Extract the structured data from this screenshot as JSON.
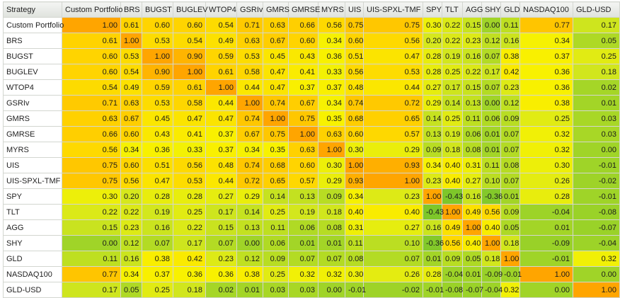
{
  "chart_data": {
    "type": "heatmap",
    "title": "",
    "corner_label": "Strategy",
    "columns": [
      "Custom Portfolio",
      "BRS",
      "BUGST",
      "BUGLEV",
      "WTOP4",
      "GSRIv",
      "GMRS",
      "GMRSE",
      "MYRS",
      "UIS",
      "UIS-SPXL-TMF",
      "SPY",
      "TLT",
      "AGG",
      "SHY",
      "GLD",
      "NASDAQ100",
      "GLD-USD"
    ],
    "rows": [
      "Custom Portfolio",
      "BRS",
      "BUGST",
      "BUGLEV",
      "WTOP4",
      "GSRIv",
      "GMRS",
      "GMRSE",
      "MYRS",
      "UIS",
      "UIS-SPXL-TMF",
      "SPY",
      "TLT",
      "AGG",
      "SHY",
      "GLD",
      "NASDAQ100",
      "GLD-USD"
    ],
    "values": [
      [
        "1.00",
        "0.61",
        "0.60",
        "0.60",
        "0.54",
        "0.71",
        "0.63",
        "0.66",
        "0.56",
        "0.75",
        "0.75",
        "0.30",
        "0.22",
        "0.15",
        "0.00",
        "0.11",
        "0.77",
        "0.17"
      ],
      [
        "0.61",
        "1.00",
        "0.53",
        "0.54",
        "0.49",
        "0.63",
        "0.67",
        "0.60",
        "0.34",
        "0.60",
        "0.56",
        "0.20",
        "0.22",
        "0.23",
        "0.12",
        "0.16",
        "0.34",
        "0.05"
      ],
      [
        "0.60",
        "0.53",
        "1.00",
        "0.90",
        "0.59",
        "0.53",
        "0.45",
        "0.43",
        "0.36",
        "0.51",
        "0.47",
        "0.28",
        "0.19",
        "0.16",
        "0.07",
        "0.38",
        "0.37",
        "0.25"
      ],
      [
        "0.60",
        "0.54",
        "0.90",
        "1.00",
        "0.61",
        "0.58",
        "0.47",
        "0.41",
        "0.33",
        "0.56",
        "0.53",
        "0.28",
        "0.25",
        "0.22",
        "0.17",
        "0.42",
        "0.36",
        "0.18"
      ],
      [
        "0.54",
        "0.49",
        "0.59",
        "0.61",
        "1.00",
        "0.44",
        "0.47",
        "0.37",
        "0.37",
        "0.48",
        "0.44",
        "0.27",
        "0.17",
        "0.15",
        "0.07",
        "0.23",
        "0.36",
        "0.02"
      ],
      [
        "0.71",
        "0.63",
        "0.53",
        "0.58",
        "0.44",
        "1.00",
        "0.74",
        "0.67",
        "0.34",
        "0.74",
        "0.72",
        "0.29",
        "0.14",
        "0.13",
        "0.00",
        "0.12",
        "0.38",
        "0.01"
      ],
      [
        "0.63",
        "0.67",
        "0.45",
        "0.47",
        "0.47",
        "0.74",
        "1.00",
        "0.75",
        "0.35",
        "0.68",
        "0.65",
        "0.14",
        "0.25",
        "0.11",
        "0.06",
        "0.09",
        "0.25",
        "0.03"
      ],
      [
        "0.66",
        "0.60",
        "0.43",
        "0.41",
        "0.37",
        "0.67",
        "0.75",
        "1.00",
        "0.63",
        "0.60",
        "0.57",
        "0.13",
        "0.19",
        "0.06",
        "0.01",
        "0.07",
        "0.32",
        "0.03"
      ],
      [
        "0.56",
        "0.34",
        "0.36",
        "0.33",
        "0.37",
        "0.34",
        "0.35",
        "0.63",
        "1.00",
        "0.30",
        "0.29",
        "0.09",
        "0.18",
        "0.08",
        "0.01",
        "0.07",
        "0.32",
        "0.00"
      ],
      [
        "0.75",
        "0.60",
        "0.51",
        "0.56",
        "0.48",
        "0.74",
        "0.68",
        "0.60",
        "0.30",
        "1.00",
        "0.93",
        "0.34",
        "0.40",
        "0.31",
        "0.11",
        "0.08",
        "0.30",
        "-0.01"
      ],
      [
        "0.75",
        "0.56",
        "0.47",
        "0.53",
        "0.44",
        "0.72",
        "0.65",
        "0.57",
        "0.29",
        "0.93",
        "1.00",
        "0.23",
        "0.40",
        "0.27",
        "0.10",
        "0.07",
        "0.26",
        "-0.02"
      ],
      [
        "0.30",
        "0.20",
        "0.28",
        "0.28",
        "0.27",
        "0.29",
        "0.14",
        "0.13",
        "0.09",
        "0.34",
        "0.23",
        "1.00",
        "-0.43",
        "0.16",
        "-0.36",
        "0.01",
        "0.28",
        "-0.01"
      ],
      [
        "0.22",
        "0.22",
        "0.19",
        "0.25",
        "0.17",
        "0.14",
        "0.25",
        "0.19",
        "0.18",
        "0.40",
        "0.40",
        "-0.43",
        "1.00",
        "0.49",
        "0.56",
        "0.09",
        "-0.04",
        "-0.08"
      ],
      [
        "0.15",
        "0.23",
        "0.16",
        "0.22",
        "0.15",
        "0.13",
        "0.11",
        "0.06",
        "0.08",
        "0.31",
        "0.27",
        "0.16",
        "0.49",
        "1.00",
        "0.40",
        "0.05",
        "0.01",
        "-0.07"
      ],
      [
        "0.00",
        "0.12",
        "0.07",
        "0.17",
        "0.07",
        "0.00",
        "0.06",
        "0.01",
        "0.01",
        "0.11",
        "0.10",
        "-0.36",
        "0.56",
        "0.40",
        "1.00",
        "0.18",
        "-0.09",
        "-0.04"
      ],
      [
        "0.11",
        "0.16",
        "0.38",
        "0.42",
        "0.23",
        "0.12",
        "0.09",
        "0.07",
        "0.07",
        "0.08",
        "0.07",
        "0.01",
        "0.09",
        "0.05",
        "0.18",
        "1.00",
        "-0.01",
        "0.32"
      ],
      [
        "0.77",
        "0.34",
        "0.37",
        "0.36",
        "0.36",
        "0.38",
        "0.25",
        "0.32",
        "0.32",
        "0.30",
        "0.26",
        "0.28",
        "-0.04",
        "0.01",
        "-0.09",
        "-0.01",
        "1.00",
        "0.00"
      ],
      [
        "0.17",
        "0.05",
        "0.25",
        "0.18",
        "0.02",
        "0.01",
        "0.03",
        "0.03",
        "0.00",
        "-0.01",
        "-0.02",
        "-0.01",
        "-0.08",
        "-0.07",
        "-0.04",
        "0.32",
        "0.00",
        "1.00"
      ]
    ]
  }
}
